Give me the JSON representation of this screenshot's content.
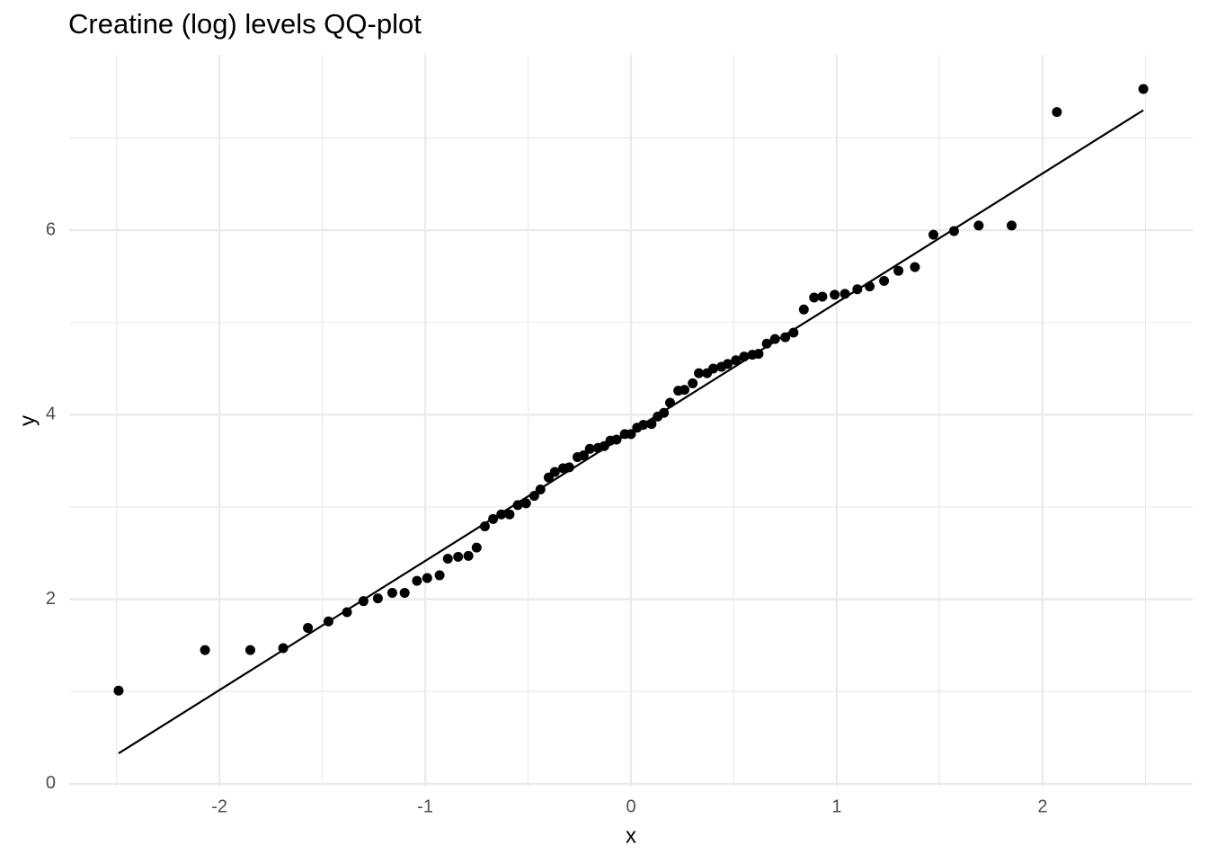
{
  "chart_data": {
    "type": "scatter",
    "title": "Creatine (log) levels QQ-plot",
    "x_label": "x",
    "y_label": "y",
    "x": [
      -2.49,
      -2.07,
      -1.85,
      -1.69,
      -1.57,
      -1.47,
      -1.38,
      -1.3,
      -1.23,
      -1.16,
      -1.1,
      -1.04,
      -0.99,
      -0.93,
      -0.89,
      -0.84,
      -0.79,
      -0.75,
      -0.71,
      -0.67,
      -0.63,
      -0.59,
      -0.55,
      -0.51,
      -0.47,
      -0.44,
      -0.4,
      -0.37,
      -0.33,
      -0.3,
      -0.26,
      -0.23,
      -0.2,
      -0.16,
      -0.13,
      -0.1,
      -0.07,
      -0.03,
      0.0,
      0.03,
      0.06,
      0.1,
      0.13,
      0.16,
      0.19,
      0.23,
      0.26,
      0.3,
      0.33,
      0.37,
      0.4,
      0.44,
      0.47,
      0.51,
      0.55,
      0.59,
      0.62,
      0.66,
      0.7,
      0.75,
      0.79,
      0.84,
      0.89,
      0.93,
      0.99,
      1.04,
      1.1,
      1.16,
      1.23,
      1.3,
      1.38,
      1.47,
      1.57,
      1.69,
      1.85,
      2.07,
      2.49
    ],
    "y": [
      1.01,
      1.45,
      1.45,
      1.47,
      1.69,
      1.76,
      1.86,
      1.98,
      2.01,
      2.07,
      2.07,
      2.2,
      2.23,
      2.26,
      2.44,
      2.46,
      2.47,
      2.56,
      2.79,
      2.87,
      2.92,
      2.92,
      3.02,
      3.04,
      3.12,
      3.19,
      3.32,
      3.38,
      3.42,
      3.43,
      3.54,
      3.56,
      3.63,
      3.64,
      3.66,
      3.72,
      3.73,
      3.79,
      3.79,
      3.86,
      3.89,
      3.9,
      3.98,
      4.02,
      4.13,
      4.26,
      4.27,
      4.34,
      4.45,
      4.45,
      4.5,
      4.52,
      4.55,
      4.59,
      4.63,
      4.65,
      4.66,
      4.77,
      4.82,
      4.84,
      4.89,
      5.14,
      5.27,
      5.28,
      5.3,
      5.31,
      5.36,
      5.39,
      5.45,
      5.56,
      5.6,
      5.95,
      5.99,
      6.05,
      6.05,
      7.28,
      7.53
    ],
    "color": "#000000",
    "line": {
      "x": [
        -2.49,
        2.49
      ],
      "y": [
        0.33,
        7.3
      ],
      "color": "#000000"
    },
    "xlim": [
      -2.73,
      2.73
    ],
    "ylim": [
      -0.03,
      7.9
    ],
    "xticks": [
      -2,
      -1,
      0,
      1,
      2
    ],
    "yticks": [
      0,
      2,
      4,
      6
    ],
    "grid": true
  }
}
